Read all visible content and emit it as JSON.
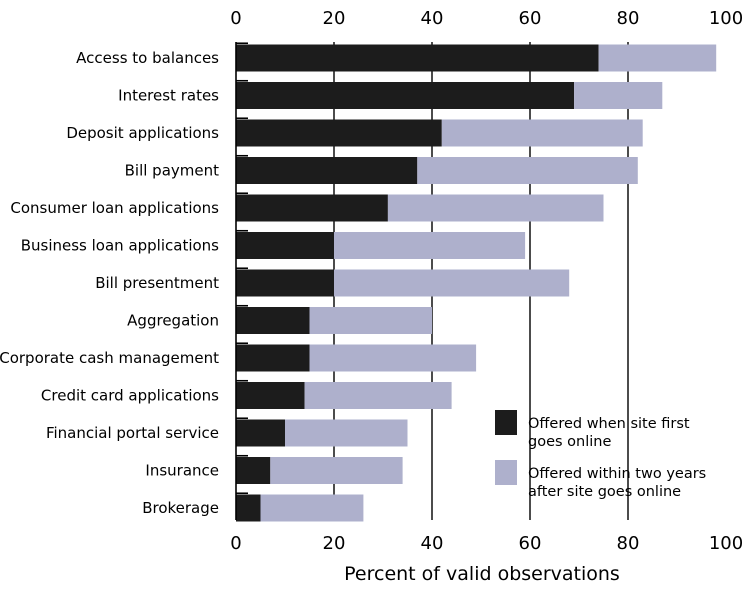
{
  "chart_data": {
    "type": "bar",
    "orientation": "horizontal",
    "stacked": true,
    "xlabel": "Percent of valid observations",
    "xlim": [
      0,
      100
    ],
    "x_ticks": [
      0,
      20,
      40,
      60,
      80,
      100
    ],
    "x_axis_top": true,
    "x_axis_bottom": true,
    "grid": "vertical lines at 20, 40, 60, 80",
    "legend_position": "bottom-right",
    "categories": [
      "Access to balances",
      "Interest rates",
      "Deposit applications",
      "Bill payment",
      "Consumer loan applications",
      "Business loan applications",
      "Bill presentment",
      "Aggregation",
      "Corporate cash management",
      "Credit card applications",
      "Financial portal service",
      "Insurance",
      "Brokerage"
    ],
    "series": [
      {
        "name": "Offered when site first goes online",
        "color": "#1c1c1c",
        "values": [
          74,
          69,
          42,
          37,
          31,
          20,
          20,
          15,
          15,
          14,
          10,
          7,
          5
        ]
      },
      {
        "name": "Offered within two years after site goes online",
        "color": "#aeb0cc",
        "values": [
          24,
          18,
          41,
          45,
          44,
          39,
          48,
          25,
          34,
          30,
          25,
          27,
          21
        ]
      }
    ],
    "legend": [
      {
        "line1": "Offered when site first",
        "line2": "goes online"
      },
      {
        "line1": "Offered within two years",
        "line2": "after site goes online"
      }
    ]
  }
}
